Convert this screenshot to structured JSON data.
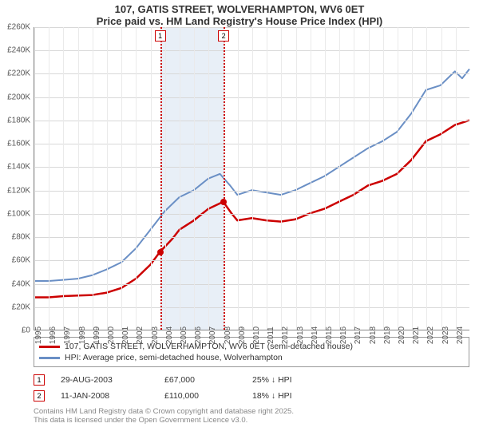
{
  "title_line1": "107, GATIS STREET, WOLVERHAMPTON, WV6 0ET",
  "title_line2": "Price paid vs. HM Land Registry's House Price Index (HPI)",
  "chart": {
    "type": "line",
    "x_start_year": 1995,
    "x_end_year": 2025,
    "ylim": [
      0,
      260000
    ],
    "ytick_step": 20000,
    "ytick_labels": [
      "£0",
      "£20K",
      "£40K",
      "£60K",
      "£80K",
      "£100K",
      "£120K",
      "£140K",
      "£160K",
      "£180K",
      "£200K",
      "£220K",
      "£240K",
      "£260K"
    ],
    "xtick_years": [
      1995,
      1996,
      1997,
      1998,
      1999,
      2000,
      2001,
      2002,
      2003,
      2004,
      2005,
      2006,
      2007,
      2008,
      2009,
      2010,
      2011,
      2012,
      2013,
      2014,
      2015,
      2016,
      2017,
      2018,
      2019,
      2020,
      2021,
      2022,
      2023,
      2024
    ],
    "background_color": "#ffffff",
    "grid_color": "#d8d8d8",
    "shade_band": {
      "from_year": 2003.66,
      "to_year": 2008.03,
      "color": "#e8eff7"
    },
    "vmarkers": [
      {
        "year": 2003.66,
        "label": "1"
      },
      {
        "year": 2008.03,
        "label": "2"
      }
    ],
    "series": [
      {
        "name": "price_paid",
        "color": "#cc0000",
        "width": 2.5,
        "points": [
          [
            1995.0,
            28000
          ],
          [
            1996.0,
            28000
          ],
          [
            1997.0,
            29000
          ],
          [
            1998.0,
            29500
          ],
          [
            1999.0,
            30000
          ],
          [
            2000.0,
            32000
          ],
          [
            2001.0,
            36000
          ],
          [
            2002.0,
            44000
          ],
          [
            2003.0,
            56000
          ],
          [
            2003.66,
            67000
          ],
          [
            2004.5,
            78000
          ],
          [
            2005.0,
            86000
          ],
          [
            2006.0,
            94000
          ],
          [
            2007.0,
            104000
          ],
          [
            2008.03,
            110000
          ],
          [
            2008.6,
            100000
          ],
          [
            2009.0,
            94000
          ],
          [
            2010.0,
            96000
          ],
          [
            2011.0,
            94000
          ],
          [
            2012.0,
            93000
          ],
          [
            2013.0,
            95000
          ],
          [
            2014.0,
            100000
          ],
          [
            2015.0,
            104000
          ],
          [
            2016.0,
            110000
          ],
          [
            2017.0,
            116000
          ],
          [
            2018.0,
            124000
          ],
          [
            2019.0,
            128000
          ],
          [
            2020.0,
            134000
          ],
          [
            2021.0,
            146000
          ],
          [
            2022.0,
            162000
          ],
          [
            2023.0,
            168000
          ],
          [
            2024.0,
            176000
          ],
          [
            2025.0,
            180000
          ]
        ],
        "sale_dots": [
          {
            "year": 2003.66,
            "value": 67000
          },
          {
            "year": 2008.03,
            "value": 110000
          }
        ]
      },
      {
        "name": "hpi",
        "color": "#6a8fc5",
        "width": 2,
        "points": [
          [
            1995.0,
            42000
          ],
          [
            1996.0,
            42000
          ],
          [
            1997.0,
            43000
          ],
          [
            1998.0,
            44000
          ],
          [
            1999.0,
            47000
          ],
          [
            2000.0,
            52000
          ],
          [
            2001.0,
            58000
          ],
          [
            2002.0,
            70000
          ],
          [
            2003.0,
            86000
          ],
          [
            2004.0,
            102000
          ],
          [
            2005.0,
            114000
          ],
          [
            2006.0,
            120000
          ],
          [
            2007.0,
            130000
          ],
          [
            2007.8,
            134000
          ],
          [
            2008.5,
            124000
          ],
          [
            2009.0,
            116000
          ],
          [
            2010.0,
            120000
          ],
          [
            2011.0,
            118000
          ],
          [
            2012.0,
            116000
          ],
          [
            2013.0,
            120000
          ],
          [
            2014.0,
            126000
          ],
          [
            2015.0,
            132000
          ],
          [
            2016.0,
            140000
          ],
          [
            2017.0,
            148000
          ],
          [
            2018.0,
            156000
          ],
          [
            2019.0,
            162000
          ],
          [
            2020.0,
            170000
          ],
          [
            2021.0,
            186000
          ],
          [
            2022.0,
            206000
          ],
          [
            2023.0,
            210000
          ],
          [
            2024.0,
            222000
          ],
          [
            2024.5,
            216000
          ],
          [
            2025.0,
            224000
          ]
        ]
      }
    ]
  },
  "legend": {
    "border_color": "#999999",
    "items": [
      {
        "color": "#cc0000",
        "label": "107, GATIS STREET, WOLVERHAMPTON, WV6 0ET (semi-detached house)"
      },
      {
        "color": "#6a8fc5",
        "label": "HPI: Average price, semi-detached house, Wolverhampton"
      }
    ]
  },
  "sales": [
    {
      "marker": "1",
      "date": "29-AUG-2003",
      "price": "£67,000",
      "delta": "25% ↓ HPI"
    },
    {
      "marker": "2",
      "date": "11-JAN-2008",
      "price": "£110,000",
      "delta": "18% ↓ HPI"
    }
  ],
  "footer_line1": "Contains HM Land Registry data © Crown copyright and database right 2025.",
  "footer_line2": "This data is licensed under the Open Government Licence v3.0."
}
